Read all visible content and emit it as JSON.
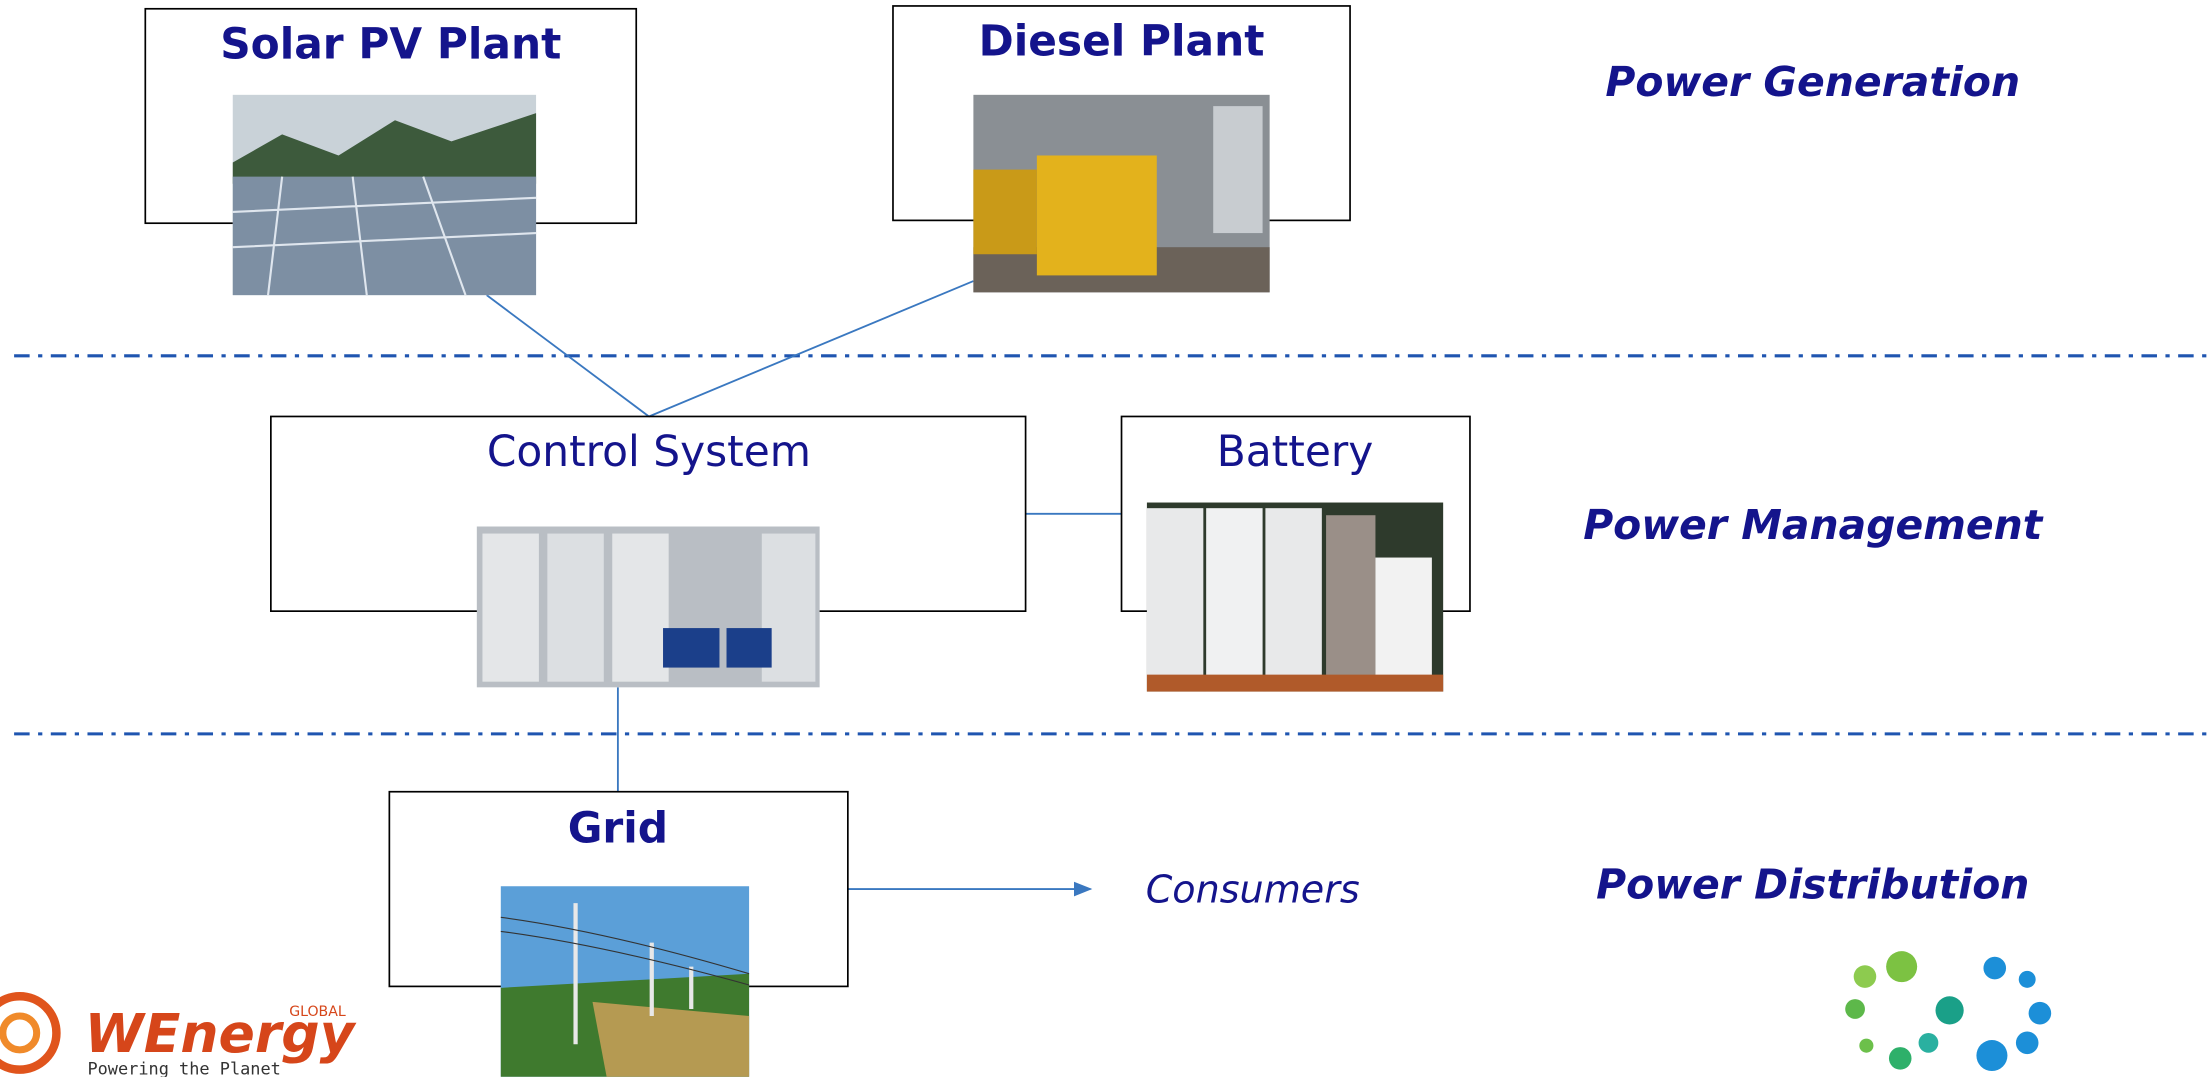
{
  "nodes": [
    {
      "label": "Solar PV Plant"
    },
    {
      "label": "Diesel Plant"
    },
    {
      "label": "Control System"
    },
    {
      "label": "Battery"
    },
    {
      "label": "Grid"
    },
    {
      "label": "Consumers"
    }
  ],
  "layers": [
    {
      "label": "Power Generation"
    },
    {
      "label": "Power Management"
    },
    {
      "label": "Power Distribution"
    }
  ],
  "logo": {
    "name": "WEnergy",
    "tag": "GLOBAL",
    "slogan": "Powering the Planet"
  }
}
